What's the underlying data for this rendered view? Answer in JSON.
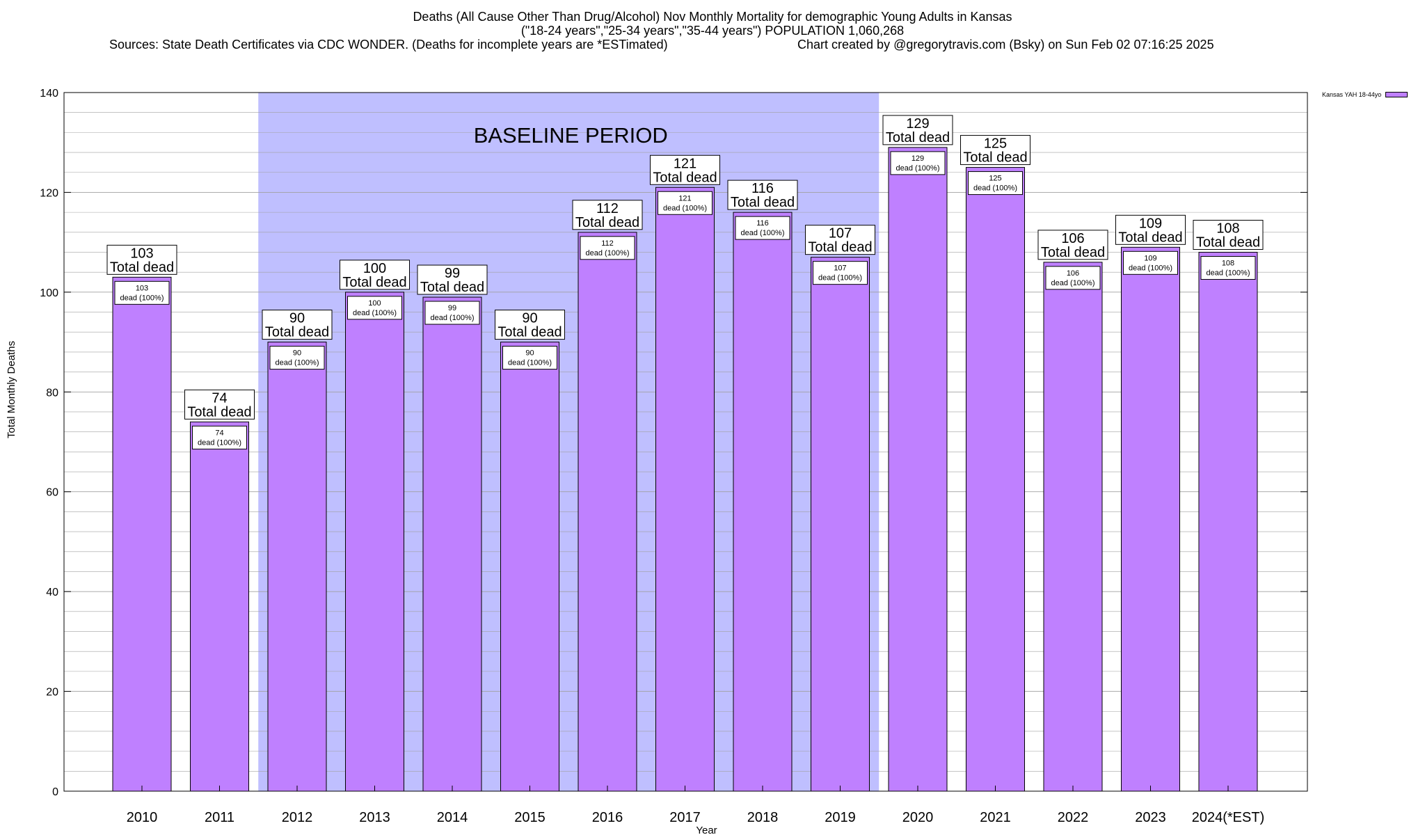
{
  "title": {
    "line1": "Deaths (All Cause Other Than Drug/Alcohol) Nov Monthly Mortality for demographic Young Adults in Kansas",
    "line2": "(\"18-24 years\",\"25-34 years\",\"35-44 years\") POPULATION 1,060,268",
    "line3_left": "Sources: State Death Certificates via CDC WONDER. (Deaths for incomplete years are *ESTimated)",
    "line3_right": "Chart created by @gregorytravis.com (Bsky) on Sun Feb 02 07:16:25 2025"
  },
  "colors": {
    "bar": "#bf80ff",
    "baseline": "#bfbfff",
    "grid": "#a0a0a0"
  },
  "chart_data": {
    "type": "bar",
    "title": "Deaths (All Cause Other Than Drug/Alcohol) Nov Monthly Mortality for demographic Young Adults in Kansas",
    "xlabel": "Year",
    "ylabel": "Total Monthly Deaths",
    "ylim": [
      0,
      140
    ],
    "yticks": [
      0,
      20,
      40,
      60,
      80,
      100,
      120,
      140
    ],
    "categories": [
      "2010",
      "2011",
      "2012",
      "2013",
      "2014",
      "2015",
      "2016",
      "2017",
      "2018",
      "2019",
      "2020",
      "2021",
      "2022",
      "2023",
      "2024(*EST)"
    ],
    "series": [
      {
        "name": "Kansas YAH 18-44yo",
        "values": [
          103,
          74,
          90,
          100,
          99,
          90,
          112,
          121,
          116,
          107,
          129,
          125,
          106,
          109,
          108
        ]
      }
    ],
    "label_top_text": "Total dead",
    "label_inner_text": "dead (100%)",
    "baseline": {
      "label": "BASELINE PERIOD",
      "from": "2012",
      "to": "2019"
    },
    "legend": "top-right"
  }
}
